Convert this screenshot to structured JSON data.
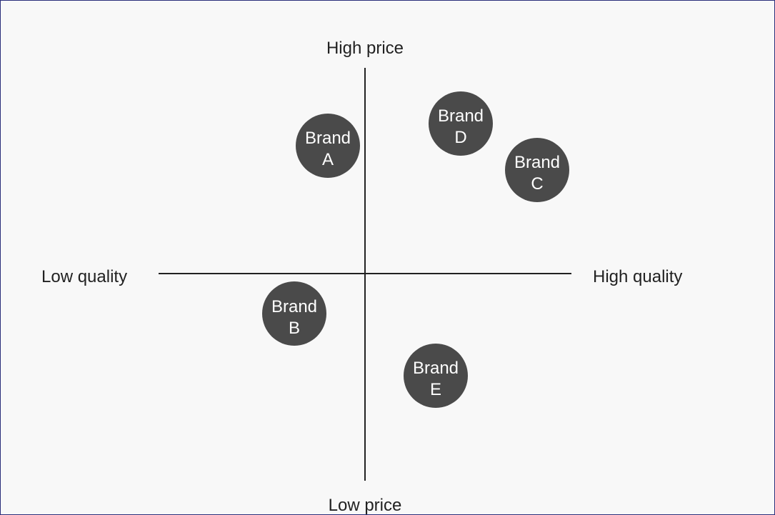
{
  "diagram": {
    "labels": {
      "top": "High price",
      "bottom": "Low price",
      "left": "Low quality",
      "right": "High quality"
    },
    "brands": [
      {
        "line1": "Brand",
        "line2": "A"
      },
      {
        "line1": "Brand",
        "line2": "D"
      },
      {
        "line1": "Brand",
        "line2": "C"
      },
      {
        "line1": "Brand",
        "line2": "B"
      },
      {
        "line1": "Brand",
        "line2": "E"
      }
    ],
    "colors": {
      "background": "#f8f8f8",
      "axis": "#222222",
      "bubble": "#4a4a4a",
      "bubble_text": "#ffffff"
    }
  }
}
